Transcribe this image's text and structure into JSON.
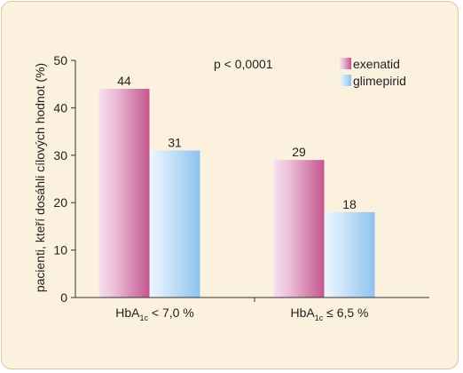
{
  "chart_data": {
    "type": "bar",
    "categories": [
      {
        "main": "HbA",
        "sub": "1c",
        "rest": " < 7,0 %"
      },
      {
        "main": "HbA",
        "sub": "1c",
        "rest": " ≤ 6,5 %"
      }
    ],
    "series": [
      {
        "name": "exenatid",
        "values": [
          44,
          29
        ]
      },
      {
        "name": "glimepirid",
        "values": [
          31,
          18
        ]
      }
    ],
    "ylabel": "pacienti, kteří dosáhli cílových hodnot (%)",
    "ylim": [
      0,
      50
    ],
    "yticks": [
      0,
      10,
      20,
      30,
      40,
      50
    ],
    "annotation": "p < 0,0001",
    "legend_position": "top-right",
    "grid": false,
    "colors": {
      "exenatid_light": "#f3d4e6",
      "exenatid_dark": "#c2568e",
      "glimepirid_light": "#e4f1fd",
      "glimepirid_dark": "#8ec3ee",
      "background": "#fbf1de",
      "axis": "#333333"
    }
  }
}
